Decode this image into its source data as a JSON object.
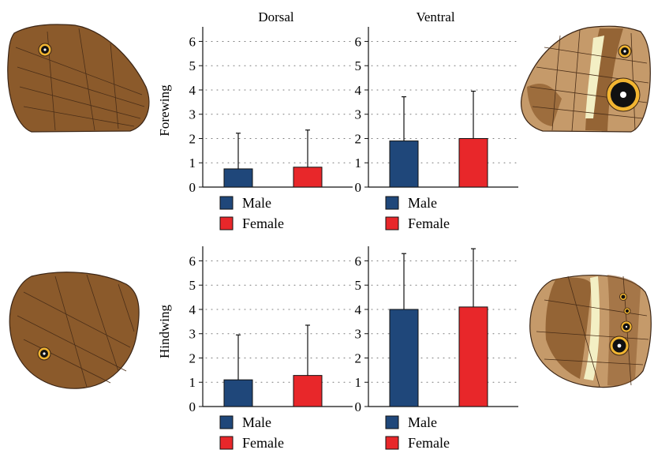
{
  "columns": {
    "dorsal": "Dorsal",
    "ventral": "Ventral"
  },
  "rows": {
    "forewing": "Forewing",
    "hindwing": "Hindwing"
  },
  "legend": {
    "male": "Male",
    "female": "Female"
  },
  "colors": {
    "male": "#1f477a",
    "female": "#e8272a",
    "grid": "#777777",
    "wing_brown": "#8b5a2b",
    "wing_light": "#c59a6a",
    "eyespot_ring": "#f2b531"
  },
  "chart_data": [
    {
      "type": "bar",
      "row": "Forewing",
      "column": "Dorsal",
      "categories": [
        "Male",
        "Female"
      ],
      "values": [
        0.75,
        0.82
      ],
      "error_upper": [
        2.22,
        2.35
      ],
      "ylim": [
        0,
        6.6
      ],
      "yticks": [
        0,
        1,
        2,
        3,
        4,
        5,
        6
      ],
      "grid": "dotted horizontal",
      "legend": "below"
    },
    {
      "type": "bar",
      "row": "Forewing",
      "column": "Ventral",
      "categories": [
        "Male",
        "Female"
      ],
      "values": [
        1.9,
        2.0
      ],
      "error_upper": [
        3.72,
        3.95
      ],
      "ylim": [
        0,
        6.6
      ],
      "yticks": [
        0,
        1,
        2,
        3,
        4,
        5,
        6
      ],
      "grid": "dotted horizontal",
      "legend": "below"
    },
    {
      "type": "bar",
      "row": "Hindwing",
      "column": "Dorsal",
      "categories": [
        "Male",
        "Female"
      ],
      "values": [
        1.1,
        1.28
      ],
      "error_upper": [
        2.95,
        3.35
      ],
      "ylim": [
        0,
        6.6
      ],
      "yticks": [
        0,
        1,
        2,
        3,
        4,
        5,
        6
      ],
      "grid": "dotted horizontal",
      "legend": "below"
    },
    {
      "type": "bar",
      "row": "Hindwing",
      "column": "Ventral",
      "categories": [
        "Male",
        "Female"
      ],
      "values": [
        4.0,
        4.1
      ],
      "error_upper": [
        6.3,
        6.5
      ],
      "ylim": [
        0,
        6.6
      ],
      "yticks": [
        0,
        1,
        2,
        3,
        4,
        5,
        6
      ],
      "grid": "dotted horizontal",
      "legend": "below"
    }
  ]
}
